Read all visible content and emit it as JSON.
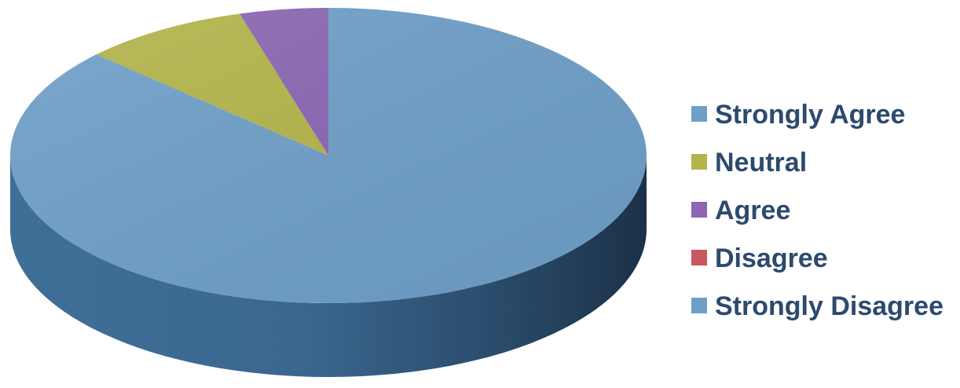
{
  "chart_data": {
    "type": "pie",
    "style": "3d",
    "title": "",
    "slices": [
      {
        "label": "Strongly Agree",
        "value": 87,
        "color": "#6f9fc8"
      },
      {
        "label": "Neutral",
        "value": 8.5,
        "color": "#b3b54a"
      },
      {
        "label": "Agree",
        "value": 4.5,
        "color": "#8a66b3"
      },
      {
        "label": "Disagree",
        "value": 0,
        "color": "#c8585d"
      },
      {
        "label": "Strongly Disagree",
        "value": 0,
        "color": "#6f9fc8"
      }
    ],
    "legend": {
      "position": "right"
    }
  }
}
